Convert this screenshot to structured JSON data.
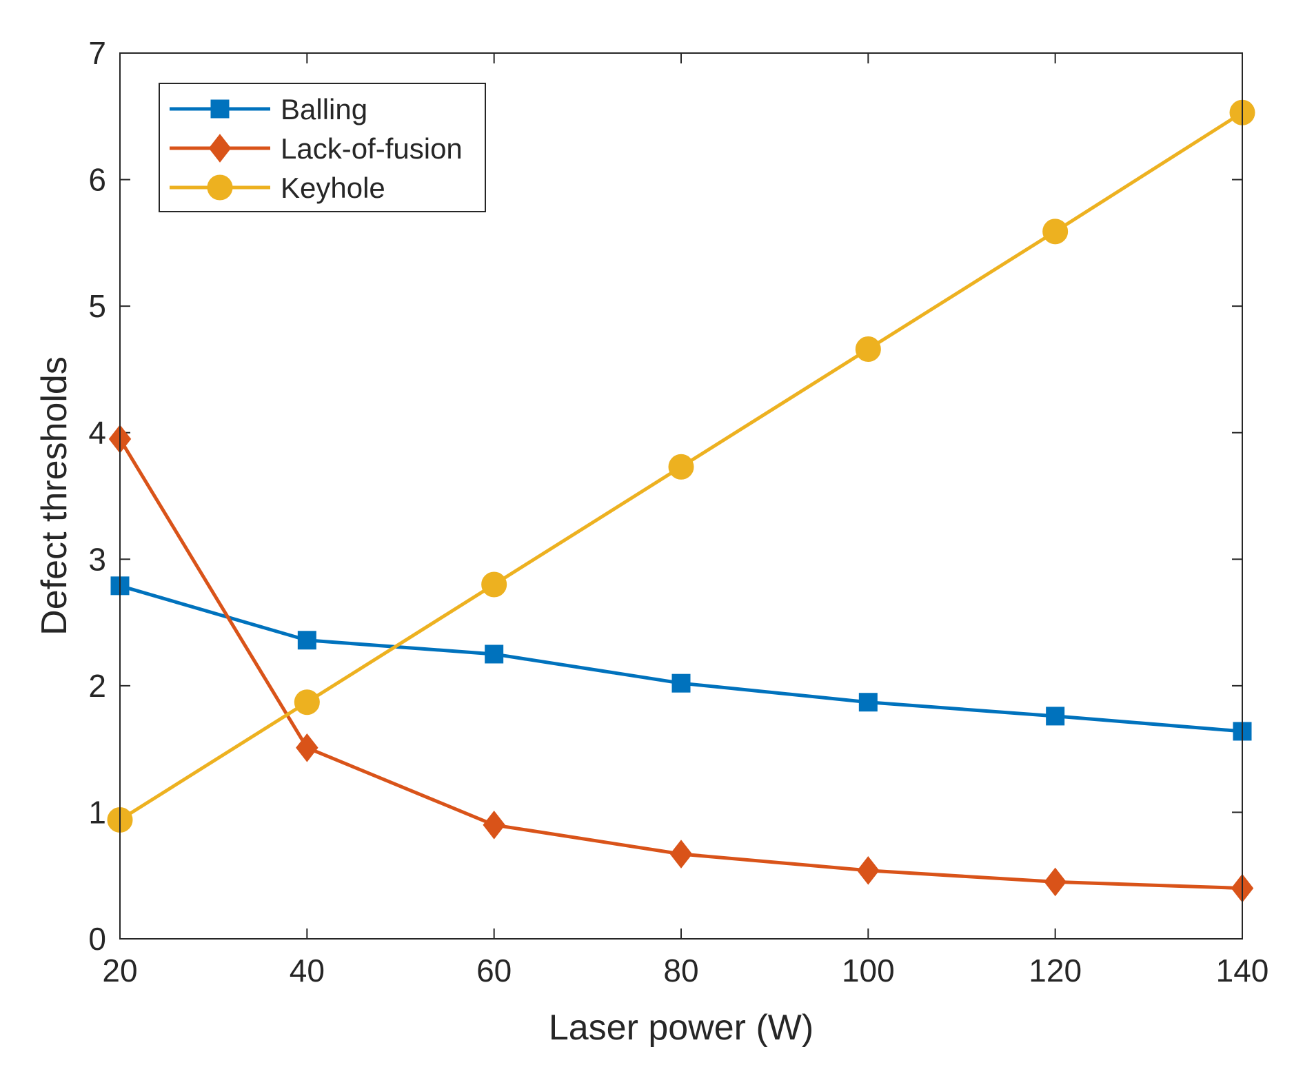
{
  "chart_data": {
    "type": "line",
    "title": "",
    "xlabel": "Laser power (W)",
    "ylabel": "Defect thresholds",
    "xlim": [
      20,
      140
    ],
    "ylim": [
      0,
      7
    ],
    "x_ticks": [
      "20",
      "40",
      "60",
      "80",
      "100",
      "120",
      "140"
    ],
    "y_ticks": [
      "0",
      "1",
      "2",
      "3",
      "4",
      "5",
      "6",
      "7"
    ],
    "grid": false,
    "legend_position": "top-left",
    "x": [
      20,
      40,
      60,
      80,
      100,
      120,
      140
    ],
    "series": [
      {
        "name": "Balling",
        "color": "#0072BD",
        "marker": "square",
        "values": [
          2.79,
          2.36,
          2.25,
          2.02,
          1.87,
          1.76,
          1.64
        ]
      },
      {
        "name": "Lack-of-fusion",
        "color": "#D95319",
        "marker": "diamond",
        "values": [
          3.95,
          1.51,
          0.9,
          0.67,
          0.54,
          0.45,
          0.4
        ]
      },
      {
        "name": "Keyhole",
        "color": "#EDB120",
        "marker": "circle",
        "values": [
          0.94,
          1.87,
          2.8,
          3.73,
          4.66,
          5.59,
          6.53
        ]
      }
    ]
  }
}
